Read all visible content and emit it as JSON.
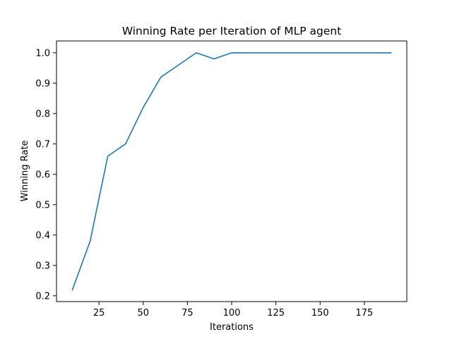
{
  "chart_data": {
    "type": "line",
    "title": "Winning Rate per Iteration of MLP agent",
    "xlabel": "Iterations",
    "ylabel": "Winning Rate",
    "x": [
      10,
      20,
      30,
      40,
      50,
      60,
      70,
      80,
      90,
      100,
      110,
      120,
      130,
      140,
      150,
      160,
      170,
      180,
      190
    ],
    "series": [
      {
        "values": [
          0.22,
          0.38,
          0.66,
          0.7,
          0.82,
          0.92,
          0.96,
          1.0,
          0.98,
          1.0,
          1.0,
          1.0,
          1.0,
          1.0,
          1.0,
          1.0,
          1.0,
          1.0,
          1.0
        ],
        "color": "#1f77b4"
      }
    ],
    "xlim": [
      1,
      199
    ],
    "ylim": [
      0.181,
      1.039
    ],
    "xticks": [
      "25",
      "50",
      "75",
      "100",
      "125",
      "150",
      "175"
    ],
    "yticks": [
      "0.2",
      "0.3",
      "0.4",
      "0.5",
      "0.6",
      "0.7",
      "0.8",
      "0.9",
      "1.0"
    ],
    "grid": false,
    "legend": "none"
  }
}
